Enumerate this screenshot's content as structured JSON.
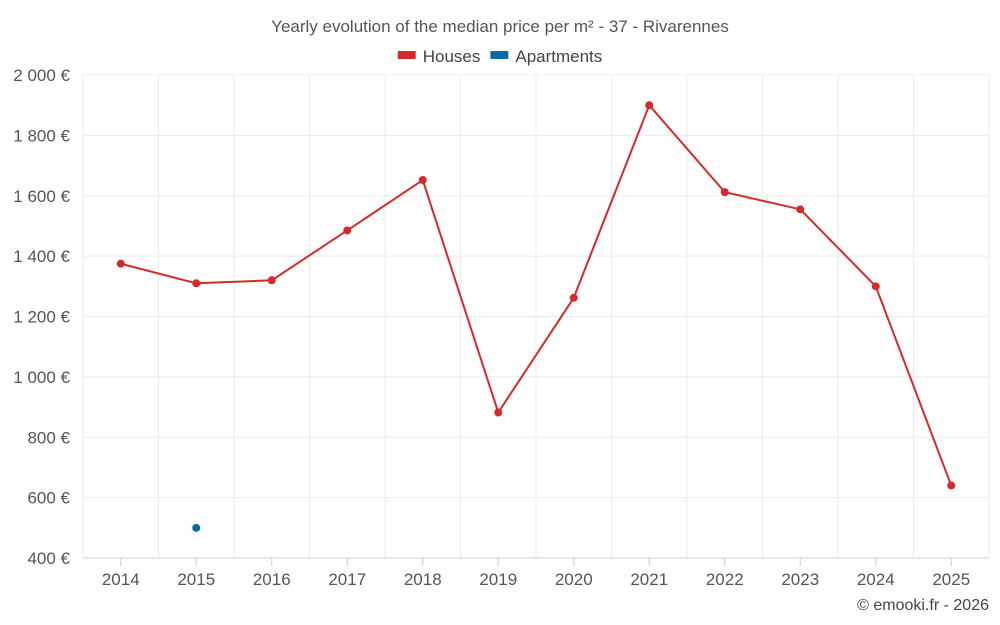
{
  "chart_data": {
    "type": "line",
    "title": "Yearly evolution of the median price per m² - 37 - Rivarennes",
    "categories": [
      "2014",
      "2015",
      "2016",
      "2017",
      "2018",
      "2019",
      "2020",
      "2021",
      "2022",
      "2023",
      "2024",
      "2025"
    ],
    "series": [
      {
        "name": "Houses",
        "color": "#d42a2a",
        "values": [
          1375,
          1310,
          1320,
          1485,
          1652,
          882,
          1262,
          1900,
          1612,
          1555,
          1300,
          640
        ]
      },
      {
        "name": "Apartments",
        "color": "#0a6aa8",
        "values": [
          null,
          500,
          null,
          null,
          null,
          null,
          null,
          null,
          null,
          null,
          null,
          null
        ]
      }
    ],
    "ylim": [
      400,
      2000
    ],
    "yticks": [
      400,
      600,
      800,
      1000,
      1200,
      1400,
      1600,
      1800,
      2000
    ],
    "ytick_labels": [
      "400 €",
      "600 €",
      "800 €",
      "1 000 €",
      "1 200 €",
      "1 400 €",
      "1 600 €",
      "1 800 €",
      "2 000 €"
    ],
    "xlabel": "",
    "ylabel": "",
    "legend_position": "top-center",
    "grid": true
  },
  "credit": "© emooki.fr - 2026"
}
